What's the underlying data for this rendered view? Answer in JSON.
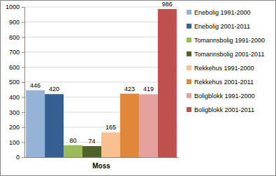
{
  "chart_data": {
    "type": "bar",
    "categories": [
      "Moss"
    ],
    "series": [
      {
        "name": "Enebolig 1991-2000",
        "color": "#95b3d7",
        "values": [
          446
        ]
      },
      {
        "name": "Enebolig 2001-2011",
        "color": "#376092",
        "values": [
          420
        ]
      },
      {
        "name": "Tomannsbolig 1991-2000",
        "color": "#9bbb59",
        "values": [
          80
        ]
      },
      {
        "name": "Tomannsbolig 2001-2011",
        "color": "#4f6228",
        "values": [
          74
        ]
      },
      {
        "name": "Rekkehus 1991-2000",
        "color": "#fac090",
        "values": [
          165
        ]
      },
      {
        "name": "Rekkehus 2001-2011",
        "color": "#e0873a",
        "values": [
          423
        ]
      },
      {
        "name": "Boligblokk 1991-2000",
        "color": "#e6a19f",
        "values": [
          419
        ]
      },
      {
        "name": "Boligblokk 2001-2011",
        "color": "#c0504d",
        "values": [
          986
        ]
      }
    ],
    "ylim": [
      0,
      1000
    ],
    "yticks": [
      0,
      100,
      200,
      300,
      400,
      500,
      600,
      700,
      800,
      900,
      1000
    ],
    "grid": true,
    "data_labels": true,
    "legend": "right"
  }
}
